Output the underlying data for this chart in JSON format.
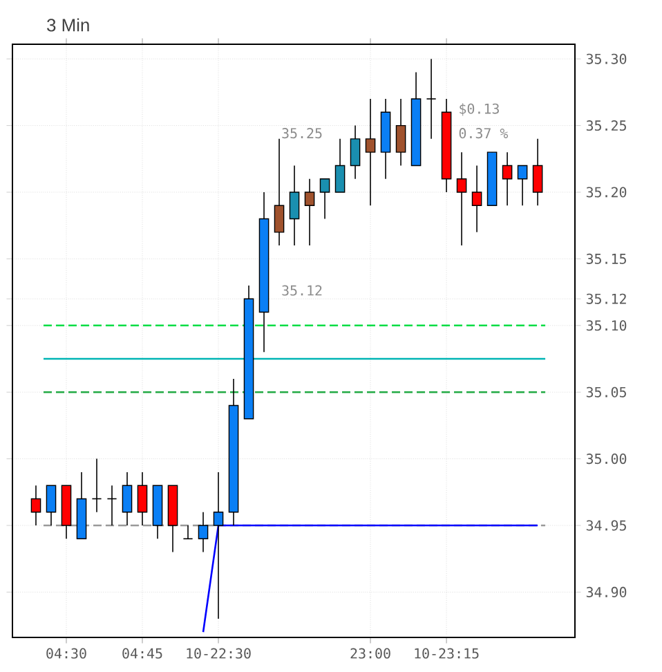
{
  "chart_data": {
    "type": "candlestick",
    "title": "3 Min",
    "categories": [
      null,
      null,
      "04:30",
      null,
      null,
      null,
      null,
      "04:45",
      null,
      null,
      null,
      null,
      "10-22:30",
      null,
      null,
      null,
      null,
      null,
      null,
      null,
      null,
      null,
      "23:00",
      null,
      null,
      null,
      null,
      "10-23:15",
      null,
      null,
      null,
      null,
      null,
      null
    ],
    "ohlc": [
      [
        34.97,
        34.98,
        34.95,
        34.96
      ],
      [
        34.96,
        34.98,
        34.95,
        34.98
      ],
      [
        34.98,
        34.98,
        34.94,
        34.95
      ],
      [
        34.94,
        34.99,
        34.94,
        34.97
      ],
      [
        34.97,
        35.0,
        34.96,
        34.97
      ],
      [
        34.97,
        34.98,
        34.95,
        34.97
      ],
      [
        34.96,
        34.99,
        34.95,
        34.98
      ],
      [
        34.98,
        34.99,
        34.95,
        34.96
      ],
      [
        34.95,
        34.98,
        34.94,
        34.98
      ],
      [
        34.98,
        34.98,
        34.93,
        34.95
      ],
      [
        34.94,
        34.95,
        34.94,
        34.94
      ],
      [
        34.94,
        34.96,
        34.93,
        34.95
      ],
      [
        34.95,
        34.99,
        34.88,
        34.96
      ],
      [
        34.96,
        35.06,
        34.95,
        35.04
      ],
      [
        35.03,
        35.13,
        35.03,
        35.12
      ],
      [
        35.11,
        35.2,
        35.08,
        35.18
      ],
      [
        35.19,
        35.24,
        35.16,
        35.17
      ],
      [
        35.18,
        35.22,
        35.16,
        35.2
      ],
      [
        35.2,
        35.21,
        35.16,
        35.19
      ],
      [
        35.2,
        35.21,
        35.18,
        35.21
      ],
      [
        35.2,
        35.24,
        35.2,
        35.22
      ],
      [
        35.22,
        35.25,
        35.21,
        35.24
      ],
      [
        35.24,
        35.27,
        35.19,
        35.23
      ],
      [
        35.23,
        35.27,
        35.21,
        35.26
      ],
      [
        35.25,
        35.27,
        35.22,
        35.23
      ],
      [
        35.22,
        35.29,
        35.22,
        35.27
      ],
      [
        35.27,
        35.3,
        35.24,
        35.27
      ],
      [
        35.26,
        35.27,
        35.2,
        35.21
      ],
      [
        35.21,
        35.23,
        35.16,
        35.2
      ],
      [
        35.2,
        35.22,
        35.17,
        35.19
      ],
      [
        35.19,
        35.23,
        35.19,
        35.23
      ],
      [
        35.22,
        35.23,
        35.19,
        35.21
      ],
      [
        35.21,
        35.22,
        35.19,
        35.22
      ],
      [
        35.22,
        35.24,
        35.19,
        35.2
      ]
    ],
    "colors": [
      "#ff0000",
      "#0a7ff5",
      "#ff0000",
      "#0a7ff5",
      "#000000",
      "#000000",
      "#0a7ff5",
      "#ff0000",
      "#0a7ff5",
      "#ff0000",
      "#000000",
      "#0a7ff5",
      "#0a7ff5",
      "#0a7ff5",
      "#0a7ff5",
      "#0a7ff5",
      "#a0522d",
      "#1a8fb0",
      "#a0522d",
      "#1a8fb0",
      "#1a8fb0",
      "#1a8fb0",
      "#a0522d",
      "#0a7ff5",
      "#a0522d",
      "#0a7ff5",
      "#000000",
      "#ff0000",
      "#ff0000",
      "#ff0000",
      "#0a7ff5",
      "#ff0000",
      "#0a7ff5",
      "#ff0000"
    ],
    "series": [
      {
        "type": "line",
        "color": "#0000ff",
        "values": [
          null,
          null,
          null,
          null,
          null,
          null,
          null,
          null,
          null,
          null,
          null,
          34.87,
          34.95,
          34.95,
          34.95,
          34.95,
          34.95,
          34.95,
          34.95,
          34.95,
          34.95,
          34.95,
          34.95,
          34.95,
          34.95,
          34.95,
          34.95,
          34.95,
          34.95,
          34.95,
          34.95,
          34.95,
          34.95,
          34.95
        ]
      }
    ],
    "ylim": [
      34.866,
      35.311
    ],
    "yticks": [
      {
        "value": 34.9,
        "label": "34.90"
      },
      {
        "value": 34.95,
        "label": "34.95"
      },
      {
        "value": 35.0,
        "label": "35.00"
      },
      {
        "value": 35.05,
        "label": "35.05"
      },
      {
        "value": 35.1,
        "label": "35.10"
      },
      {
        "value": 35.12,
        "label": "35.12"
      },
      {
        "value": 35.15,
        "label": "35.15"
      },
      {
        "value": 35.2,
        "label": "35.20"
      },
      {
        "value": 35.25,
        "label": "35.25"
      },
      {
        "value": 35.3,
        "label": "35.30"
      }
    ],
    "ref_lines": [
      {
        "axis": "y",
        "value": 35.1,
        "color": "#00dd44",
        "line_style": "dashed"
      },
      {
        "axis": "y",
        "value": 35.075,
        "color": "#00b4b4"
      },
      {
        "axis": "y",
        "value": 35.05,
        "color": "#22aa44",
        "line_style": "dashed"
      },
      {
        "axis": "y",
        "value": 34.95,
        "color": "#999999",
        "line_style": "dashed"
      }
    ],
    "annotations": [
      "35.25",
      "35.12",
      "$0.13",
      "0.37 %"
    ],
    "grid": true
  }
}
